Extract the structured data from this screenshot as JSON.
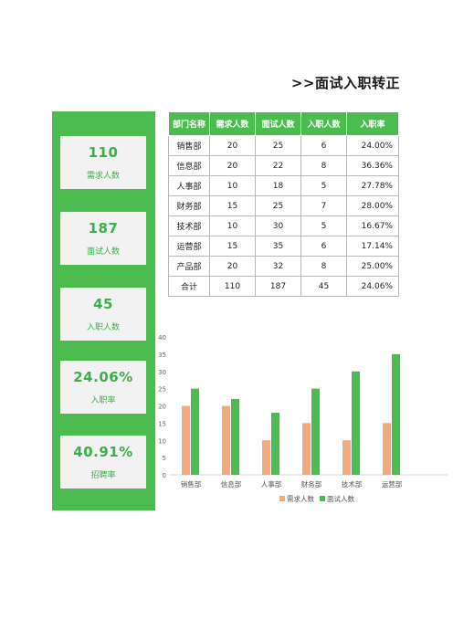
{
  "title": ">>面试入职转正",
  "kpis": [
    {
      "value": "110",
      "label": "需求人数"
    },
    {
      "value": "187",
      "label": "面试人数"
    },
    {
      "value": "45",
      "label": "入职人数"
    },
    {
      "value": "24.06%",
      "label": "入职率"
    },
    {
      "value": "40.91%",
      "label": "招聘率"
    }
  ],
  "table": {
    "headers": [
      "部门名称",
      "需求人数",
      "面试人数",
      "入职人数",
      "入职率"
    ],
    "rows": [
      [
        "销售部",
        "20",
        "25",
        "6",
        "24.00%"
      ],
      [
        "信息部",
        "20",
        "22",
        "8",
        "36.36%"
      ],
      [
        "人事部",
        "10",
        "18",
        "5",
        "27.78%"
      ],
      [
        "财务部",
        "15",
        "25",
        "7",
        "28.00%"
      ],
      [
        "技术部",
        "10",
        "30",
        "5",
        "16.67%"
      ],
      [
        "运营部",
        "15",
        "35",
        "6",
        "17.14%"
      ],
      [
        "产品部",
        "20",
        "32",
        "8",
        "25.00%"
      ],
      [
        "合计",
        "110",
        "187",
        "45",
        "24.06%"
      ]
    ]
  },
  "chart_data": {
    "type": "bar",
    "categories": [
      "销售部",
      "信息部",
      "人事部",
      "财务部",
      "技术部",
      "运营部"
    ],
    "series": [
      {
        "name": "需求人数",
        "values": [
          20,
          20,
          10,
          15,
          10,
          15
        ],
        "color": "#f4a97b"
      },
      {
        "name": "面试人数",
        "values": [
          25,
          22,
          18,
          25,
          30,
          35
        ],
        "color": "#4cbb50"
      }
    ],
    "yticks": [
      "0",
      "5",
      "10",
      "15",
      "20",
      "25",
      "30",
      "35",
      "40"
    ],
    "ylim": [
      0,
      40
    ],
    "grid": false,
    "legend": "bottom"
  },
  "colors": {
    "accent": "#4cbb50",
    "kpi_text": "#3ab046",
    "card_bg": "#f2f2f2"
  }
}
